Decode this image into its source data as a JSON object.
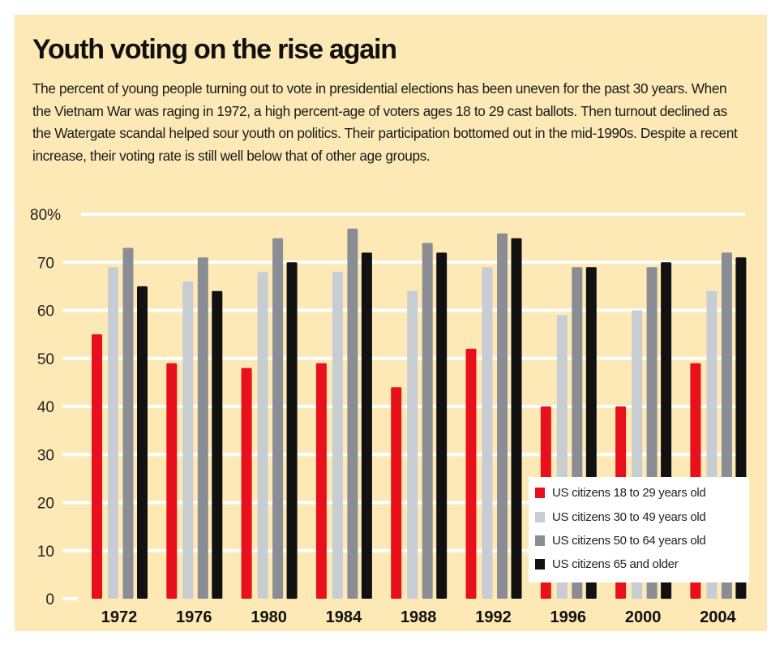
{
  "header": {
    "title": "Youth voting on the rise again",
    "description": "The percent of young people turning out to vote in presidential elections has been uneven for the past 30 years. When the Vietnam War was raging in 1972, a high percent-age of voters ages 18 to 29 cast ballots. Then turnout declined as the Watergate scandal helped sour youth on politics. Their participation bottomed out in the mid-1990s. Despite a recent increase, their voting rate is still well below that of other age groups."
  },
  "colors": {
    "background": "#fde9b5",
    "gridline": "#ffffff"
  },
  "chart_data": {
    "type": "bar",
    "title": "Youth voting on the rise again",
    "xlabel": "",
    "ylabel": "",
    "ylim": [
      0,
      80
    ],
    "yticks": [
      0,
      10,
      20,
      30,
      40,
      50,
      60,
      70,
      80
    ],
    "ytick_labels": [
      "0",
      "10",
      "20",
      "30",
      "40",
      "50",
      "60",
      "70",
      "80%"
    ],
    "grid": true,
    "legend_position": "bottom-right",
    "categories": [
      "1972",
      "1976",
      "1980",
      "1984",
      "1988",
      "1992",
      "1996",
      "2000",
      "2004"
    ],
    "series": [
      {
        "name": "US citizens 18 to 29 years old",
        "color": "#e8101b",
        "values": [
          55,
          49,
          48,
          49,
          44,
          52,
          40,
          40,
          49
        ]
      },
      {
        "name": "US citizens 30 to 49 years old",
        "color": "#c8ccd3",
        "values": [
          69,
          66,
          68,
          68,
          64,
          69,
          59,
          60,
          64
        ]
      },
      {
        "name": "US citizens 50 to 64 years old",
        "color": "#8a8d93",
        "values": [
          73,
          71,
          75,
          77,
          74,
          76,
          69,
          69,
          72
        ]
      },
      {
        "name": "US citizens 65 and older",
        "color": "#111111",
        "values": [
          65,
          64,
          70,
          72,
          72,
          75,
          69,
          70,
          71
        ]
      }
    ]
  }
}
